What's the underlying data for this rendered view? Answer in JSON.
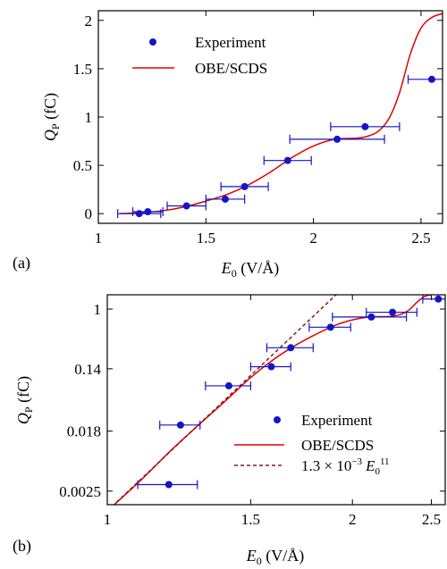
{
  "chart_data": [
    {
      "panel_label": "(a)",
      "type": "scatter",
      "xlim": [
        1,
        2.6
      ],
      "ylim": [
        -0.1,
        2.1
      ],
      "x_ticks": [
        1,
        1.5,
        2,
        2.5
      ],
      "x_tick_labels": [
        "1",
        "1.5",
        "2",
        "2.5"
      ],
      "y_ticks": [
        0,
        0.5,
        1,
        1.5,
        2
      ],
      "y_tick_labels": [
        "0",
        "0.5",
        "1",
        "1.5",
        "2"
      ],
      "xlabel_var": "E",
      "xlabel_sub": "0",
      "xlabel_unit": " (V/Å)",
      "ylabel_var": "Q",
      "ylabel_sub": "P",
      "ylabel_unit": " (fC)",
      "legend_position": "top-left",
      "series": [
        {
          "name": "Experiment",
          "kind": "points",
          "color": "#1414c8",
          "points": [
            {
              "x": 1.19,
              "y": 0.0,
              "xerr": 0.1
            },
            {
              "x": 1.23,
              "y": 0.02,
              "xerr": 0.07
            },
            {
              "x": 1.41,
              "y": 0.08,
              "xerr": 0.09
            },
            {
              "x": 1.59,
              "y": 0.15,
              "xerr": 0.09
            },
            {
              "x": 1.68,
              "y": 0.28,
              "xerr": 0.11
            },
            {
              "x": 1.88,
              "y": 0.55,
              "xerr": 0.11
            },
            {
              "x": 2.11,
              "y": 0.77,
              "xerr": 0.22
            },
            {
              "x": 2.24,
              "y": 0.9,
              "xerr": 0.16
            },
            {
              "x": 2.55,
              "y": 1.39,
              "xerr": 0.11
            }
          ]
        },
        {
          "name": "OBE/SCDS",
          "kind": "line",
          "color": "#e00000",
          "points": [
            {
              "x": 1.1,
              "y": 0.0
            },
            {
              "x": 1.2,
              "y": 0.01
            },
            {
              "x": 1.3,
              "y": 0.03
            },
            {
              "x": 1.4,
              "y": 0.07
            },
            {
              "x": 1.5,
              "y": 0.13
            },
            {
              "x": 1.6,
              "y": 0.2
            },
            {
              "x": 1.7,
              "y": 0.3
            },
            {
              "x": 1.8,
              "y": 0.43
            },
            {
              "x": 1.9,
              "y": 0.58
            },
            {
              "x": 2.0,
              "y": 0.7
            },
            {
              "x": 2.1,
              "y": 0.77
            },
            {
              "x": 2.2,
              "y": 0.78
            },
            {
              "x": 2.25,
              "y": 0.8
            },
            {
              "x": 2.3,
              "y": 0.85
            },
            {
              "x": 2.35,
              "y": 0.98
            },
            {
              "x": 2.4,
              "y": 1.25
            },
            {
              "x": 2.45,
              "y": 1.65
            },
            {
              "x": 2.5,
              "y": 1.92
            },
            {
              "x": 2.55,
              "y": 2.03
            },
            {
              "x": 2.6,
              "y": 2.07
            }
          ]
        }
      ]
    },
    {
      "panel_label": "(b)",
      "type": "scatter",
      "x_scale": "log",
      "y_scale": "log",
      "xlim": [
        1,
        2.6
      ],
      "ylim": [
        0.0016,
        1.6
      ],
      "x_ticks": [
        1,
        1.5,
        2,
        2.5
      ],
      "x_tick_labels": [
        "1",
        "1.5",
        "2",
        "2.5"
      ],
      "y_ticks": [
        0.0025,
        0.018,
        0.14,
        1
      ],
      "y_tick_labels": [
        "0.0025",
        "0.018",
        "0.14",
        "1"
      ],
      "xlabel_var": "E",
      "xlabel_sub": "0",
      "xlabel_unit": " (V/Å)",
      "ylabel_var": "Q",
      "ylabel_sub": "P",
      "ylabel_unit": " (fC)",
      "legend_position": "bottom-right",
      "series": [
        {
          "name": "Experiment",
          "kind": "points",
          "color": "#1414c8",
          "points": [
            {
              "x": 1.19,
              "y": 0.0031,
              "xerr": 0.1
            },
            {
              "x": 1.23,
              "y": 0.022,
              "xerr": 0.07
            },
            {
              "x": 1.41,
              "y": 0.08,
              "xerr": 0.09
            },
            {
              "x": 1.59,
              "y": 0.15,
              "xerr": 0.09
            },
            {
              "x": 1.68,
              "y": 0.28,
              "xerr": 0.11
            },
            {
              "x": 1.88,
              "y": 0.55,
              "xerr": 0.11
            },
            {
              "x": 2.11,
              "y": 0.77,
              "xerr": 0.22
            },
            {
              "x": 2.24,
              "y": 0.9,
              "xerr": 0.16
            },
            {
              "x": 2.55,
              "y": 1.39,
              "xerr": 0.11
            }
          ]
        },
        {
          "name": "OBE/SCDS",
          "kind": "line",
          "color": "#e00000",
          "points": [
            {
              "x": 1.0,
              "y": 0.0013
            },
            {
              "x": 1.1,
              "y": 0.0036
            },
            {
              "x": 1.2,
              "y": 0.0098
            },
            {
              "x": 1.3,
              "y": 0.023
            },
            {
              "x": 1.4,
              "y": 0.05
            },
            {
              "x": 1.5,
              "y": 0.105
            },
            {
              "x": 1.6,
              "y": 0.19
            },
            {
              "x": 1.7,
              "y": 0.3
            },
            {
              "x": 1.8,
              "y": 0.43
            },
            {
              "x": 1.9,
              "y": 0.58
            },
            {
              "x": 2.0,
              "y": 0.7
            },
            {
              "x": 2.1,
              "y": 0.77
            },
            {
              "x": 2.2,
              "y": 0.78
            },
            {
              "x": 2.25,
              "y": 0.8
            },
            {
              "x": 2.3,
              "y": 0.85
            },
            {
              "x": 2.35,
              "y": 0.98
            },
            {
              "x": 2.4,
              "y": 1.25
            },
            {
              "x": 2.45,
              "y": 1.5
            },
            {
              "x": 2.5,
              "y": 1.6
            }
          ]
        },
        {
          "name": "1.3 × 10−3 E011",
          "name_parts": {
            "coef": "1.3 × 10",
            "exp1": "−3",
            "var": "E",
            "sub": "0",
            "exp2": "11"
          },
          "kind": "dashed-line",
          "color": "#8b1a1a",
          "coefficient": 0.0013,
          "exponent": 11
        }
      ]
    }
  ]
}
